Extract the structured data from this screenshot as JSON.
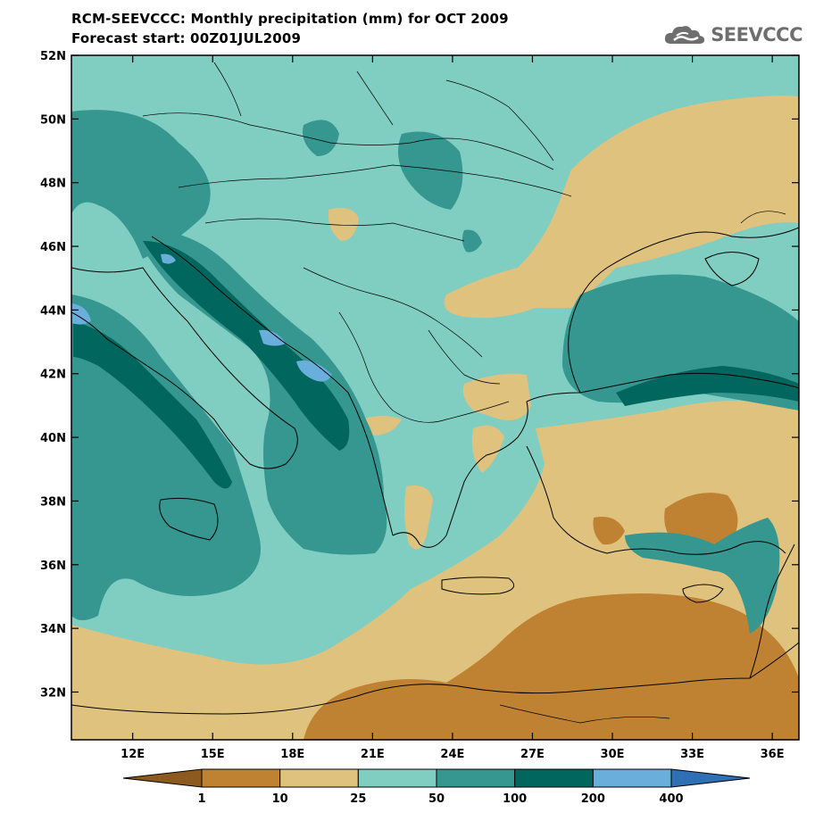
{
  "header": {
    "title": "RCM-SEEVCCC: Monthly precipitation (mm) for OCT 2009",
    "subtitle": "Forecast start: 00Z01JUL2009"
  },
  "logo": {
    "text": "SEEVCCC",
    "icon": "cloud-icon"
  },
  "map": {
    "lon_range": [
      9.7,
      37.0
    ],
    "lat_range": [
      30.5,
      52.0
    ],
    "lon_ticks": [
      {
        "value": 12,
        "label": "12E"
      },
      {
        "value": 15,
        "label": "15E"
      },
      {
        "value": 18,
        "label": "18E"
      },
      {
        "value": 21,
        "label": "21E"
      },
      {
        "value": 24,
        "label": "24E"
      },
      {
        "value": 27,
        "label": "27E"
      },
      {
        "value": 30,
        "label": "30E"
      },
      {
        "value": 33,
        "label": "33E"
      },
      {
        "value": 36,
        "label": "36E"
      }
    ],
    "lat_ticks": [
      {
        "value": 52,
        "label": "52N"
      },
      {
        "value": 50,
        "label": "50N"
      },
      {
        "value": 48,
        "label": "48N"
      },
      {
        "value": 46,
        "label": "46N"
      },
      {
        "value": 44,
        "label": "44N"
      },
      {
        "value": 42,
        "label": "42N"
      },
      {
        "value": 40,
        "label": "40N"
      },
      {
        "value": 38,
        "label": "38N"
      },
      {
        "value": 36,
        "label": "36N"
      },
      {
        "value": 34,
        "label": "34N"
      },
      {
        "value": 32,
        "label": "32N"
      }
    ]
  },
  "colorbar": {
    "colors": [
      "#8c5a1e",
      "#bf8232",
      "#dfc27e",
      "#80cdc1",
      "#35978f",
      "#01665e",
      "#6aaedc",
      "#2f6fb4"
    ],
    "labels": [
      "1",
      "10",
      "25",
      "50",
      "100",
      "200",
      "400"
    ]
  }
}
